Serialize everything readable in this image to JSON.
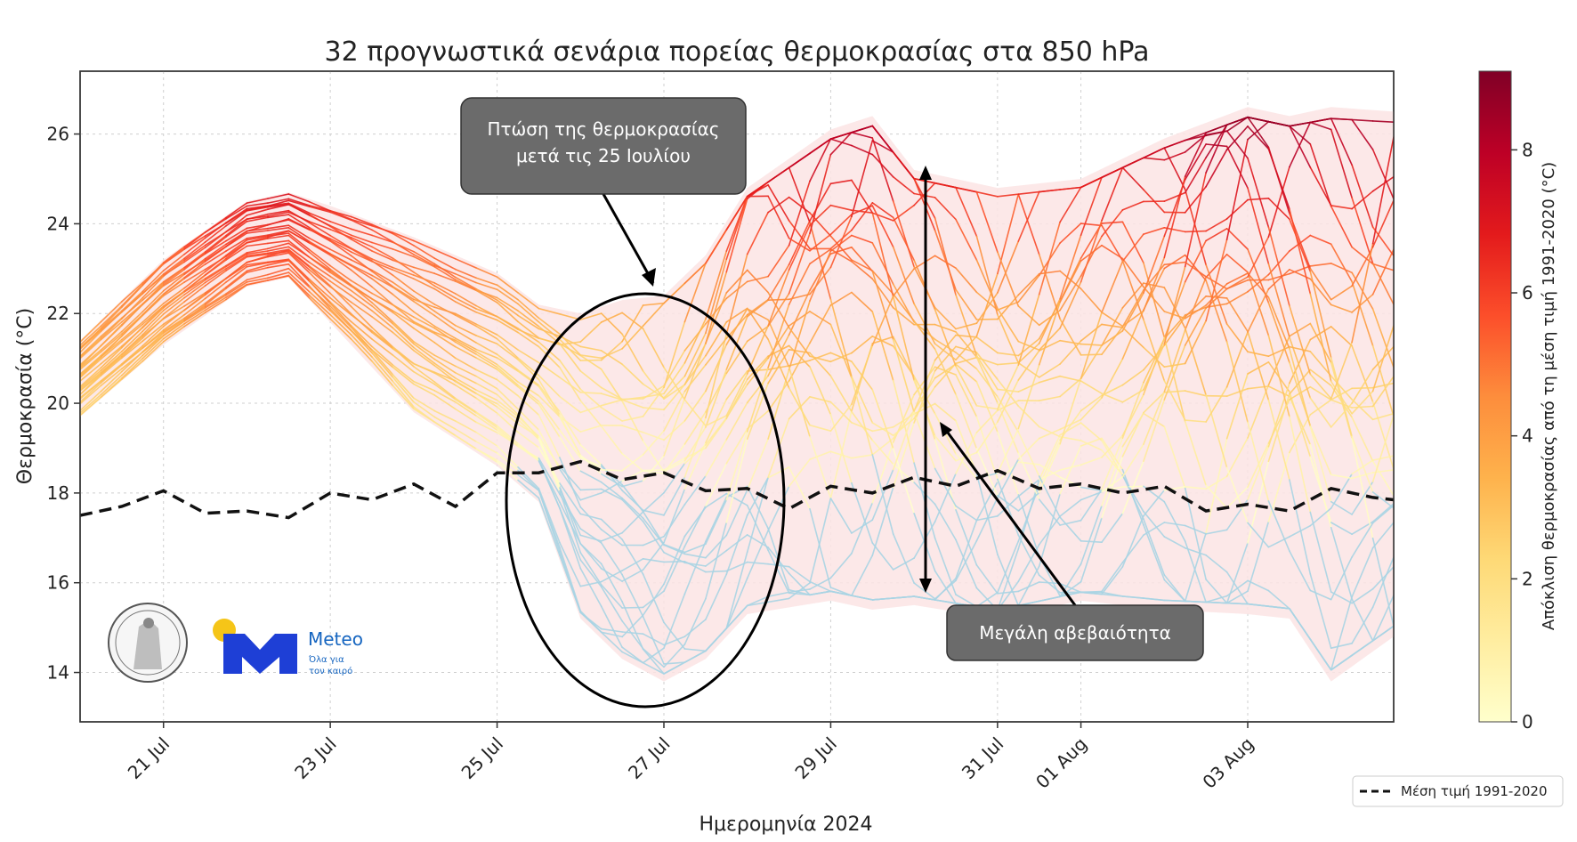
{
  "chart_data": {
    "type": "line",
    "title": "32 προγνωστικά σενάρια πορείας θερμοκρασίας στα 850 hPa",
    "xlabel": "Ημερομηνία 2024",
    "ylabel": "Θερμοκρασία (°C)",
    "xlim": [
      "2024-07-20",
      "2024-08-04 18:00"
    ],
    "ylim": [
      12.9,
      27.4
    ],
    "x_ticks": [
      "21 Jul",
      "23 Jul",
      "25 Jul",
      "27 Jul",
      "29 Jul",
      "31 Jul",
      "01 Aug",
      "03 Aug"
    ],
    "y_ticks": [
      "14",
      "16",
      "18",
      "20",
      "22",
      "24",
      "26"
    ],
    "grid": true,
    "ensemble_members": 32,
    "climatology": {
      "name": "Μέση τιμή 1991-2020",
      "style": "dashed",
      "color": "#111111",
      "x": [
        "2024-07-20",
        "2024-07-20 12:00",
        "2024-07-21",
        "2024-07-21 12:00",
        "2024-07-22",
        "2024-07-22 12:00",
        "2024-07-23",
        "2024-07-23 12:00",
        "2024-07-24",
        "2024-07-24 12:00",
        "2024-07-25",
        "2024-07-25 12:00",
        "2024-07-26",
        "2024-07-26 12:00",
        "2024-07-27",
        "2024-07-27 12:00",
        "2024-07-28",
        "2024-07-28 12:00",
        "2024-07-29",
        "2024-07-29 12:00",
        "2024-07-30",
        "2024-07-30 12:00",
        "2024-07-31",
        "2024-07-31 12:00",
        "2024-08-01",
        "2024-08-01 12:00",
        "2024-08-02",
        "2024-08-02 12:00",
        "2024-08-03",
        "2024-08-03 12:00",
        "2024-08-04",
        "2024-08-04 12:00",
        "2024-08-04 18:00"
      ],
      "y": [
        17.5,
        17.7,
        18.05,
        17.55,
        17.6,
        17.45,
        18.0,
        17.85,
        18.2,
        17.7,
        18.45,
        18.45,
        18.7,
        18.3,
        18.45,
        18.05,
        18.1,
        17.65,
        18.15,
        18.0,
        18.35,
        18.15,
        18.5,
        18.1,
        18.2,
        18.0,
        18.15,
        17.6,
        17.75,
        17.6,
        18.1,
        17.9,
        17.85
      ]
    },
    "spread_band": {
      "x": [
        "2024-07-20",
        "2024-07-21",
        "2024-07-22",
        "2024-07-22 12:00",
        "2024-07-23",
        "2024-07-24",
        "2024-07-25",
        "2024-07-25 12:00",
        "2024-07-26",
        "2024-07-26 12:00",
        "2024-07-27",
        "2024-07-27 12:00",
        "2024-07-28",
        "2024-07-29",
        "2024-07-29 12:00",
        "2024-07-30",
        "2024-07-31",
        "2024-08-01",
        "2024-08-02",
        "2024-08-03",
        "2024-08-03 12:00",
        "2024-08-04",
        "2024-08-04 18:00"
      ],
      "low": [
        19.7,
        21.3,
        22.6,
        22.8,
        21.8,
        19.8,
        18.6,
        17.8,
        15.2,
        14.3,
        13.8,
        14.3,
        15.3,
        15.6,
        15.4,
        15.5,
        15.2,
        15.6,
        15.4,
        15.3,
        15.2,
        13.8,
        14.8
      ],
      "high": [
        21.4,
        23.2,
        24.5,
        24.7,
        24.4,
        23.7,
        22.9,
        22.2,
        22.0,
        22.3,
        22.4,
        23.3,
        24.8,
        26.1,
        26.4,
        25.2,
        24.8,
        25.0,
        25.9,
        26.6,
        26.4,
        26.6,
        26.5
      ]
    },
    "colorbar": {
      "label": "Απόκλιση θερμοκρασίας από τη μέση τιμή 1991-2020 (°C)",
      "ticks": [
        "0",
        "2",
        "4",
        "6",
        "8"
      ],
      "range": [
        0,
        9.1
      ],
      "colormap": [
        "#ffffcc",
        "#ffeda0",
        "#fed976",
        "#feb24c",
        "#fd8d3c",
        "#fc4e2a",
        "#e31a1c",
        "#bd0026",
        "#800026"
      ]
    },
    "below_normal_color": "#a9d4e3",
    "annotations": [
      {
        "text": "Πτώση της θερμοκρασίας μετά τις 25 Ιουλίου"
      },
      {
        "text": "Μεγάλη αβεβαιότητα"
      }
    ],
    "legend": {
      "position": "bottom-right"
    }
  },
  "logo": {
    "brand": "Meteo",
    "tagline": "Όλα για τον καιρό"
  }
}
